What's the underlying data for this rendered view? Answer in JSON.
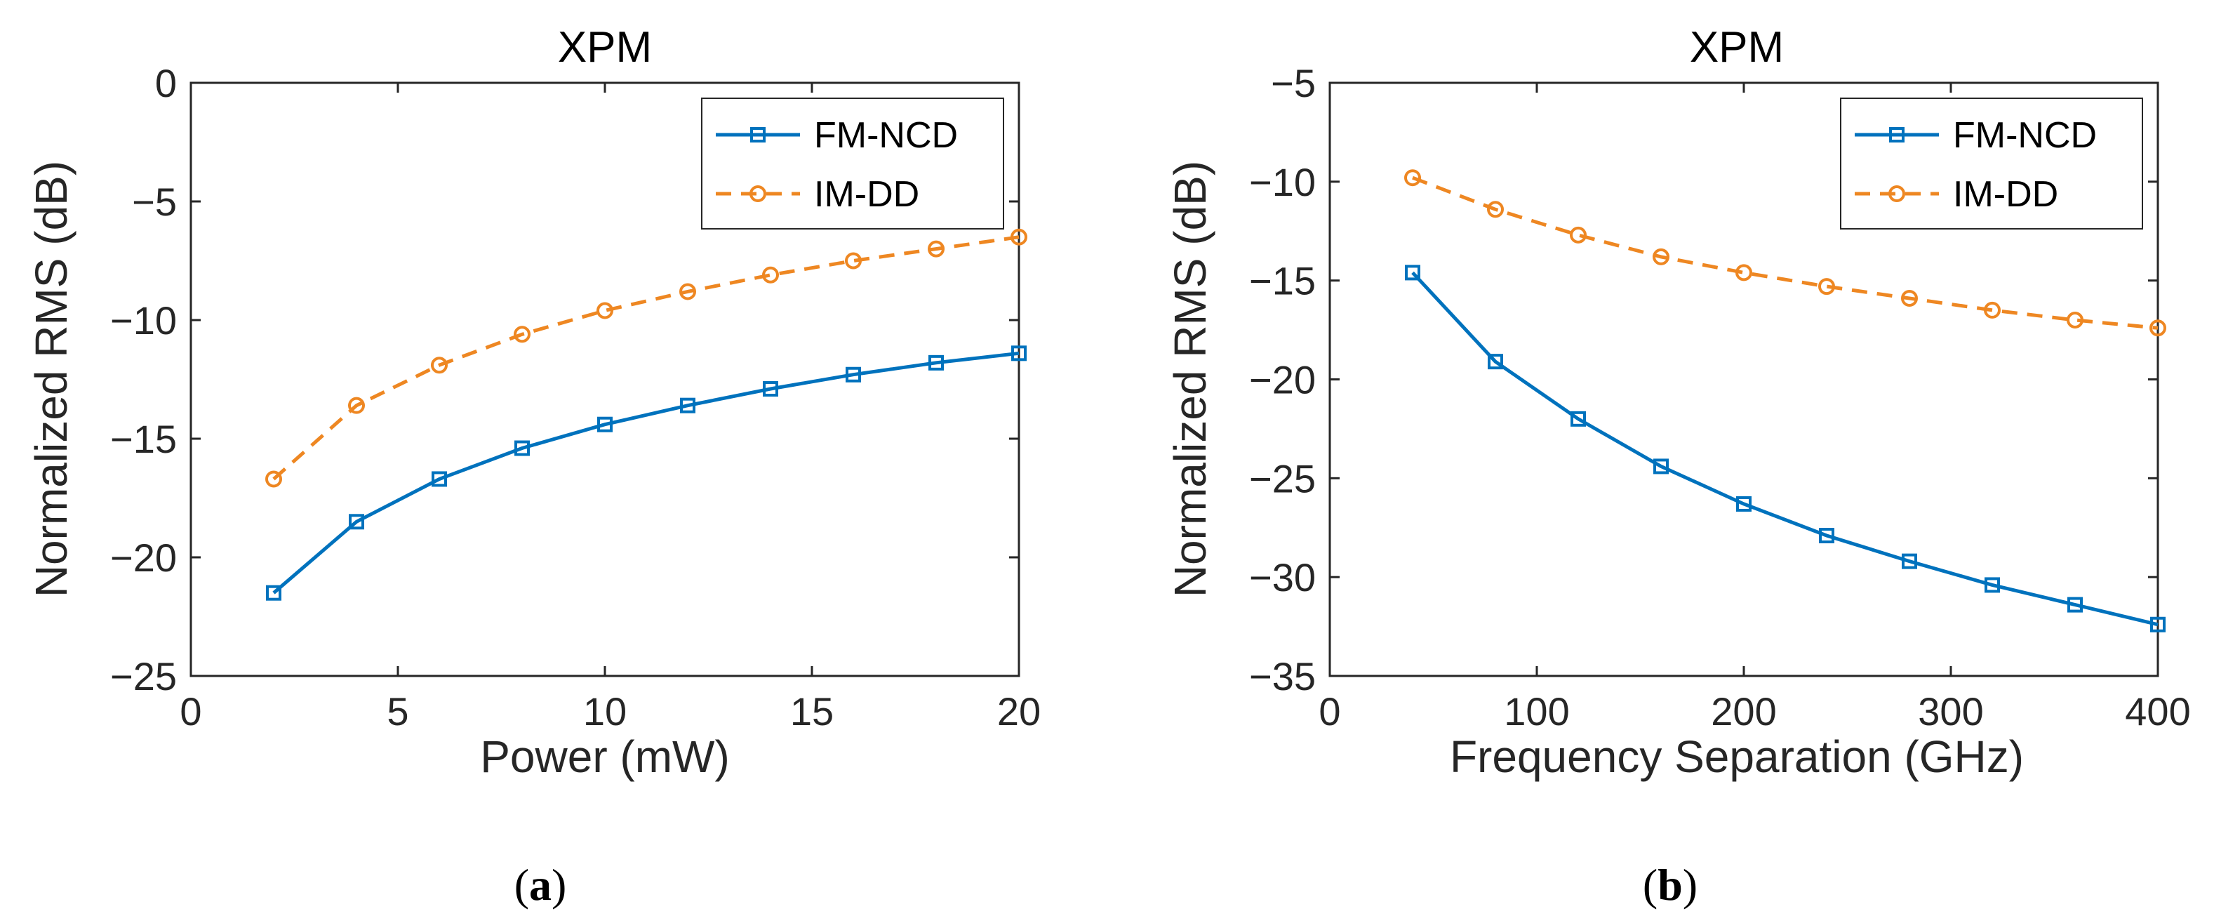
{
  "chart_data": [
    {
      "type": "line",
      "title": "XPM",
      "xlabel": "Power (mW)",
      "ylabel": "Normalized RMS (dB)",
      "xlim": [
        0,
        20
      ],
      "ylim": [
        -25,
        0
      ],
      "xticks": [
        0,
        5,
        10,
        15,
        20
      ],
      "yticks": [
        0,
        -5,
        -10,
        -15,
        -20,
        -25
      ],
      "xtick_labels": [
        "0",
        "5",
        "10",
        "15",
        "20"
      ],
      "ytick_labels": [
        "0",
        "−5",
        "−10",
        "−15",
        "−20",
        "−25"
      ],
      "legend_position": "top-right",
      "caption_letter": "a",
      "series": [
        {
          "name": "FM-NCD",
          "color": "#0072BD",
          "marker": "square",
          "dash": "solid",
          "x": [
            2,
            4,
            6,
            8,
            10,
            12,
            14,
            16,
            18,
            20
          ],
          "values": [
            -21.5,
            -18.5,
            -16.7,
            -15.4,
            -14.4,
            -13.6,
            -12.9,
            -12.3,
            -11.8,
            -11.4
          ]
        },
        {
          "name": "IM-DD",
          "color": "#EE8722",
          "marker": "circle",
          "dash": "dashed",
          "x": [
            2,
            4,
            6,
            8,
            10,
            12,
            14,
            16,
            18,
            20
          ],
          "values": [
            -16.7,
            -13.6,
            -11.9,
            -10.6,
            -9.6,
            -8.8,
            -8.1,
            -7.5,
            -7.0,
            -6.5
          ]
        }
      ]
    },
    {
      "type": "line",
      "title": "XPM",
      "xlabel": "Frequency Separation (GHz)",
      "ylabel": "Normalized RMS (dB)",
      "xlim": [
        0,
        400
      ],
      "ylim": [
        -35,
        -5
      ],
      "xticks": [
        0,
        100,
        200,
        300,
        400
      ],
      "yticks": [
        -5,
        -10,
        -15,
        -20,
        -25,
        -30,
        -35
      ],
      "xtick_labels": [
        "0",
        "100",
        "200",
        "300",
        "400"
      ],
      "ytick_labels": [
        "−5",
        "−10",
        "−15",
        "−20",
        "−25",
        "−30",
        "−35"
      ],
      "legend_position": "top-right",
      "caption_letter": "b",
      "series": [
        {
          "name": "FM-NCD",
          "color": "#0072BD",
          "marker": "square",
          "dash": "solid",
          "x": [
            40,
            80,
            120,
            160,
            200,
            240,
            280,
            320,
            360,
            400
          ],
          "values": [
            -14.6,
            -19.1,
            -22.0,
            -24.4,
            -26.3,
            -27.9,
            -29.2,
            -30.4,
            -31.4,
            -32.4
          ]
        },
        {
          "name": "IM-DD",
          "color": "#EE8722",
          "marker": "circle",
          "dash": "dashed",
          "x": [
            40,
            80,
            120,
            160,
            200,
            240,
            280,
            320,
            360,
            400
          ],
          "values": [
            -9.8,
            -11.4,
            -12.7,
            -13.8,
            -14.6,
            -15.3,
            -15.9,
            -16.5,
            -17.0,
            -17.4
          ]
        }
      ]
    }
  ]
}
